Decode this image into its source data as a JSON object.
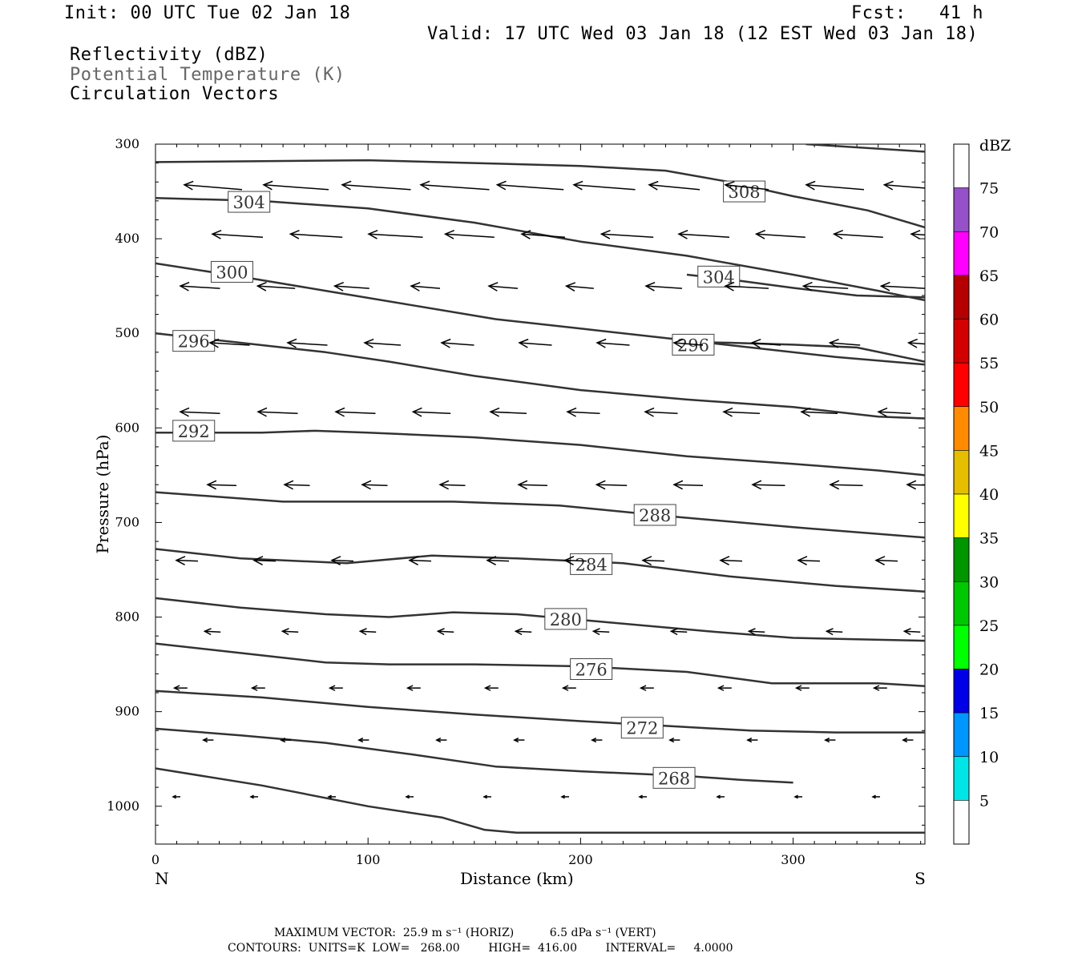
{
  "header": {
    "init": "Init: 00 UTC Tue 02 Jan 18",
    "fcst": "Fcst:   41 h",
    "valid": "Valid: 17 UTC Wed 03 Jan 18 (12 EST Wed 03 Jan 18)",
    "field1": "Reflectivity (dBZ)",
    "field2": "Potential Temperature (K)",
    "field3": "Circulation Vectors"
  },
  "footer": {
    "line1": "MAXIMUM VECTOR:  25.9 m s⁻¹ (HORIZ)          6.5 dPa s⁻¹ (VERT)",
    "line2": "CONTOURS:  UNITS=K  LOW=   268.00        HIGH=  416.00        INTERVAL=     4.0000"
  },
  "colors": {
    "contour": "#333333",
    "vector": "#000000",
    "axis": "#000000"
  },
  "chart_data": {
    "type": "line",
    "xlabel": "Distance (km)",
    "ylabel": "Pressure (hPa)",
    "xlim": [
      0,
      362
    ],
    "ylim": [
      300,
      1040
    ],
    "y_scale": "linear, inverted",
    "x_ticks": [
      "0",
      "100",
      "200",
      "300"
    ],
    "y_ticks": [
      "300",
      "400",
      "500",
      "600",
      "700",
      "800",
      "900",
      "1000"
    ],
    "x_end_labels": {
      "left": "N",
      "right": "S"
    },
    "colorbar": {
      "unit": "dBZ",
      "levels": [
        "5",
        "10",
        "15",
        "20",
        "25",
        "30",
        "35",
        "40",
        "45",
        "50",
        "55",
        "60",
        "65",
        "70",
        "75"
      ],
      "colors": [
        "#ffffff",
        "#00e6e6",
        "#0096ff",
        "#0000e6",
        "#00ff00",
        "#00c800",
        "#009600",
        "#ffff00",
        "#e6be00",
        "#ff8c00",
        "#ff0000",
        "#d20000",
        "#b40000",
        "#ff00ff",
        "#9650c8",
        "#ffffff"
      ]
    },
    "series": [
      {
        "label": "308",
        "points": [
          [
            306,
            300
          ],
          [
            362,
            308
          ]
        ]
      },
      {
        "label": "308",
        "points": [
          [
            0,
            319
          ],
          [
            50,
            318
          ],
          [
            100,
            317
          ],
          [
            150,
            320
          ],
          [
            200,
            323
          ],
          [
            240,
            328
          ],
          [
            270,
            340
          ],
          [
            300,
            355
          ],
          [
            335,
            370
          ],
          [
            362,
            388
          ]
        ],
        "label_pos": [
          277,
          350
        ]
      },
      {
        "label": "304",
        "points": [
          [
            0,
            357
          ],
          [
            50,
            360
          ],
          [
            100,
            368
          ],
          [
            150,
            383
          ],
          [
            200,
            403
          ],
          [
            250,
            418
          ],
          [
            300,
            438
          ],
          [
            340,
            455
          ],
          [
            362,
            465
          ]
        ],
        "label_pos": [
          44,
          361
        ]
      },
      {
        "label": "304",
        "points": [
          [
            250,
            438
          ],
          [
            270,
            443
          ],
          [
            300,
            452
          ],
          [
            330,
            460
          ],
          [
            362,
            462
          ]
        ],
        "label_pos": [
          265,
          440
        ]
      },
      {
        "label": "300",
        "points": [
          [
            0,
            426
          ],
          [
            40,
            440
          ],
          [
            80,
            455
          ],
          [
            120,
            470
          ],
          [
            160,
            485
          ],
          [
            200,
            495
          ],
          [
            240,
            505
          ],
          [
            280,
            515
          ],
          [
            320,
            525
          ],
          [
            362,
            533
          ]
        ],
        "label_pos": [
          36,
          435
        ]
      },
      {
        "label": "296",
        "points": [
          [
            0,
            500
          ],
          [
            40,
            510
          ],
          [
            80,
            520
          ],
          [
            110,
            530
          ],
          [
            150,
            545
          ],
          [
            200,
            560
          ],
          [
            250,
            570
          ],
          [
            300,
            578
          ],
          [
            340,
            588
          ],
          [
            362,
            590
          ]
        ],
        "label_pos": [
          18,
          508
        ]
      },
      {
        "label": "296",
        "points": [
          [
            248,
            509
          ],
          [
            270,
            510
          ],
          [
            300,
            512
          ],
          [
            330,
            515
          ],
          [
            362,
            530
          ]
        ],
        "label_pos": [
          253,
          512
        ]
      },
      {
        "label": "292",
        "points": [
          [
            0,
            605
          ],
          [
            50,
            605
          ],
          [
            75,
            603
          ],
          [
            100,
            605
          ],
          [
            150,
            610
          ],
          [
            200,
            618
          ],
          [
            250,
            630
          ],
          [
            300,
            638
          ],
          [
            340,
            645
          ],
          [
            362,
            650
          ]
        ],
        "label_pos": [
          18,
          603
        ]
      },
      {
        "label": "288",
        "points": [
          [
            0,
            668
          ],
          [
            60,
            678
          ],
          [
            100,
            678
          ],
          [
            140,
            678
          ],
          [
            190,
            682
          ],
          [
            240,
            693
          ],
          [
            300,
            705
          ],
          [
            362,
            716
          ]
        ],
        "label_pos": [
          235,
          692
        ]
      },
      {
        "label": "284",
        "points": [
          [
            0,
            728
          ],
          [
            40,
            738
          ],
          [
            90,
            743
          ],
          [
            130,
            735
          ],
          [
            170,
            738
          ],
          [
            220,
            743
          ],
          [
            270,
            757
          ],
          [
            320,
            767
          ],
          [
            362,
            773
          ]
        ],
        "label_pos": [
          205,
          744
        ]
      },
      {
        "label": "280",
        "points": [
          [
            0,
            780
          ],
          [
            40,
            790
          ],
          [
            80,
            797
          ],
          [
            110,
            800
          ],
          [
            140,
            795
          ],
          [
            170,
            797
          ],
          [
            210,
            805
          ],
          [
            260,
            815
          ],
          [
            300,
            822
          ],
          [
            362,
            825
          ]
        ],
        "label_pos": [
          193,
          802
        ]
      },
      {
        "label": "276",
        "points": [
          [
            0,
            828
          ],
          [
            40,
            838
          ],
          [
            80,
            848
          ],
          [
            110,
            850
          ],
          [
            150,
            850
          ],
          [
            200,
            852
          ],
          [
            250,
            858
          ],
          [
            290,
            870
          ],
          [
            340,
            870
          ],
          [
            362,
            873
          ]
        ],
        "label_pos": [
          205,
          855
        ]
      },
      {
        "label": "272",
        "points": [
          [
            0,
            878
          ],
          [
            50,
            885
          ],
          [
            100,
            895
          ],
          [
            150,
            903
          ],
          [
            200,
            910
          ],
          [
            240,
            915
          ],
          [
            280,
            920
          ],
          [
            320,
            922
          ],
          [
            362,
            922
          ]
        ],
        "label_pos": [
          229,
          917
        ]
      },
      {
        "label": "268",
        "points": [
          [
            0,
            918
          ],
          [
            40,
            925
          ],
          [
            80,
            933
          ],
          [
            120,
            945
          ],
          [
            160,
            958
          ],
          [
            200,
            963
          ],
          [
            250,
            968
          ],
          [
            275,
            972
          ],
          [
            300,
            975
          ]
        ],
        "label_pos": [
          244,
          970
        ]
      },
      {
        "label": "",
        "points": [
          [
            0,
            960
          ],
          [
            50,
            978
          ],
          [
            100,
            1000
          ],
          [
            135,
            1012
          ],
          [
            155,
            1025
          ],
          [
            170,
            1028
          ],
          [
            210,
            1028
          ],
          [
            250,
            1028
          ],
          [
            290,
            1028
          ],
          [
            362,
            1028
          ]
        ]
      }
    ]
  }
}
